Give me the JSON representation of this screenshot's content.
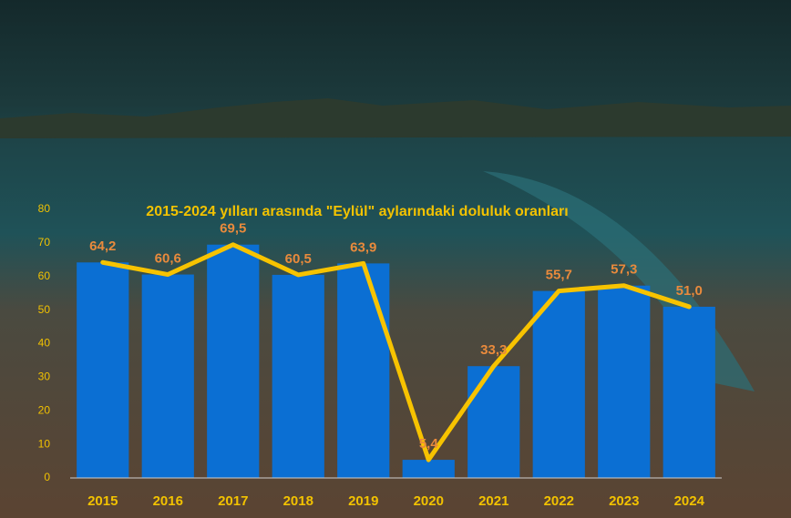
{
  "chart_data": {
    "type": "bar",
    "title": "2015-2024 yılları arasında \"Eylül\" aylarındaki doluluk oranları",
    "categories": [
      "2015",
      "2016",
      "2017",
      "2018",
      "2019",
      "2020",
      "2021",
      "2022",
      "2023",
      "2024"
    ],
    "values": [
      64.2,
      60.6,
      69.5,
      60.5,
      63.9,
      5.4,
      33.3,
      55.7,
      57.3,
      51.0
    ],
    "value_labels": [
      "64,2",
      "60,6",
      "69,5",
      "60,5",
      "63,9",
      "5,4",
      "33,3",
      "55,7",
      "57,3",
      "51,0"
    ],
    "color": "#0b6fd3",
    "line": true,
    "line_color": "#f7c300",
    "ylim": [
      0,
      80
    ],
    "yticks": [
      0,
      10,
      20,
      30,
      40,
      50,
      60,
      70,
      80
    ],
    "grid": false
  }
}
